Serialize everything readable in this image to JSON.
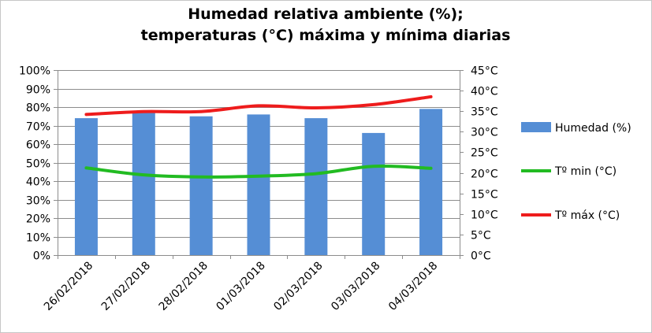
{
  "chart_data": {
    "type": "bar",
    "title": "Humedad relativa ambiente (%);",
    "subtitle": "temperaturas (°C) máxima y mínima diarias",
    "categories": [
      "26/02/2018",
      "27/02/2018",
      "28/02/2018",
      "01/03/2018",
      "02/03/2018",
      "03/03/2018",
      "04/03/2018"
    ],
    "series": [
      {
        "name": "Humedad (%)",
        "type": "bar",
        "axis": "left",
        "color": "#558ed5",
        "values": [
          74,
          77,
          75,
          76,
          74,
          66,
          79
        ]
      },
      {
        "name": "Tº min (°C)",
        "type": "line",
        "axis": "right",
        "color": "#22bb22",
        "values": [
          21.2,
          19.5,
          19.0,
          19.2,
          19.8,
          21.6,
          21.1
        ]
      },
      {
        "name": "Tº máx (°C)",
        "type": "line",
        "axis": "right",
        "color": "#ee1c1c",
        "values": [
          34.2,
          34.9,
          34.9,
          36.3,
          35.8,
          36.6,
          38.5
        ]
      }
    ],
    "y_left": {
      "ylim": [
        0,
        100
      ],
      "ticks": [
        "0%",
        "10%",
        "20%",
        "30%",
        "40%",
        "50%",
        "60%",
        "70%",
        "80%",
        "90%",
        "100%"
      ]
    },
    "y_right": {
      "ylim": [
        0,
        45
      ],
      "ticks": [
        "0°C",
        "5°C",
        "10°C",
        "15°C",
        "20°C",
        "25°C",
        "30°C",
        "35°C",
        "40°C",
        "45°C"
      ]
    },
    "grid": true,
    "legend": "right"
  }
}
